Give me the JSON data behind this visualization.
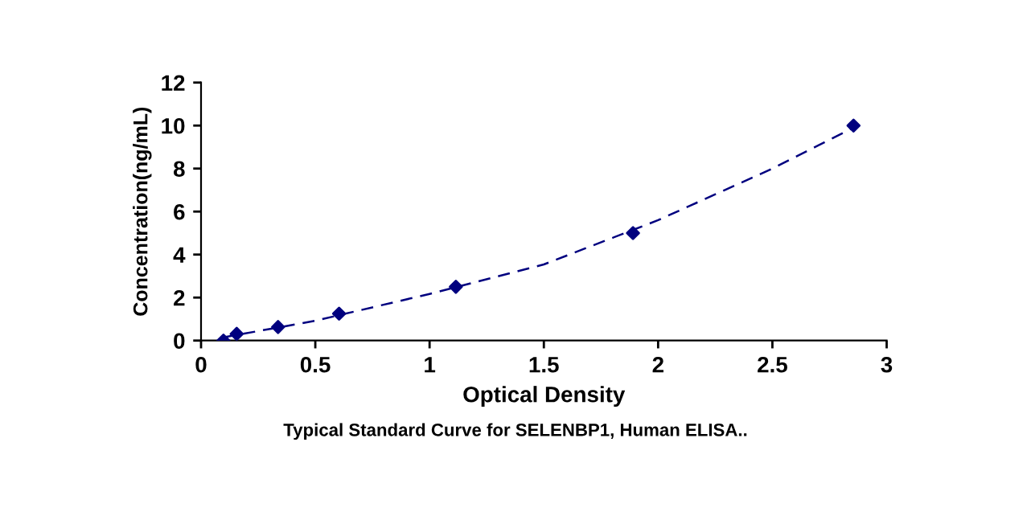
{
  "chart_data": {
    "type": "scatter",
    "xlabel": "Optical Density",
    "ylabel": "Concentration(ng/mL)",
    "annotations": [
      "Typical Standard Curve for SELENBP1, Human ELISA.."
    ],
    "xlim": [
      0,
      3
    ],
    "xticks": [
      0,
      0.5,
      1,
      1.5,
      2,
      2.5,
      3
    ],
    "ylim": [
      0,
      12
    ],
    "yticks": [
      0,
      2,
      4,
      6,
      8,
      10,
      12
    ],
    "grid": false,
    "legend": false,
    "series": [
      {
        "color": "#00007f",
        "marker": "diamond",
        "x": [
          0.098,
          0.156,
          0.337,
          0.604,
          1.115,
          1.89,
          2.855
        ],
        "values": [
          0,
          0.31,
          0.63,
          1.25,
          2.5,
          5,
          10
        ]
      },
      {
        "type": "line",
        "color": "#00007f",
        "line_style": "dashed",
        "marker": "none",
        "x": [
          0.098,
          0.5,
          1.0,
          1.5,
          2.0,
          2.5,
          2.855
        ],
        "values": [
          0.15,
          0.92,
          2.17,
          3.54,
          5.6,
          8.0,
          9.9
        ]
      }
    ]
  }
}
